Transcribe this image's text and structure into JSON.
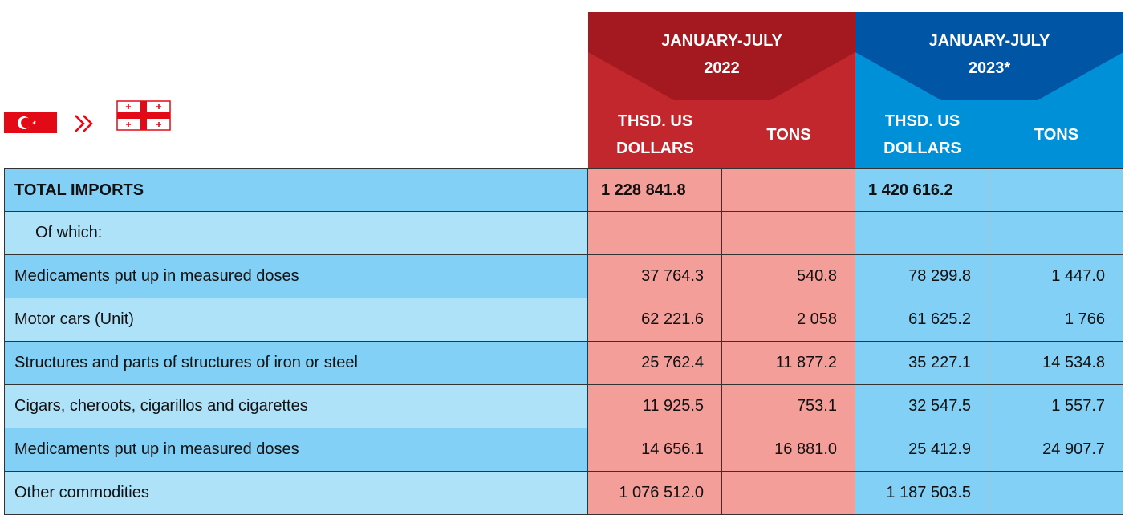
{
  "header": {
    "period_1": "JANUARY-JULY 2022",
    "period_2": "JANUARY-JULY 2023*",
    "columns": [
      "THSD. US DOLLARS",
      "TONS",
      "THSD. US DOLLARS",
      "TONS"
    ]
  },
  "table": {
    "rows": [
      [
        "TOTAL IMPORTS",
        "1 228 841.8",
        null,
        "1 420 616.2",
        null
      ],
      [
        "Of which:",
        null,
        null,
        null,
        null
      ],
      [
        "Medicaments put up in measured doses",
        "37 764.3",
        "540.8",
        "78 299.8",
        "1 447.0"
      ],
      [
        "Motor cars (Unit)",
        "62 221.6",
        "2 058",
        "61 625.2",
        "1 766"
      ],
      [
        "Structures and parts of structures of iron or steel",
        "25 762.4",
        "11 877.2",
        "35 227.1",
        "14 534.8"
      ],
      [
        "Cigars, cheroots, cigarillos and cigarettes",
        "11 925.5",
        "753.1",
        "32 547.5",
        "1 557.7"
      ],
      [
        "Medicaments put up in measured doses",
        "14 656.1",
        "16 881.0",
        "25 412.9",
        "24 907.7"
      ],
      [
        "Other commodities",
        "1 076 512.0",
        null,
        "1 187 503.5",
        null
      ]
    ]
  }
}
